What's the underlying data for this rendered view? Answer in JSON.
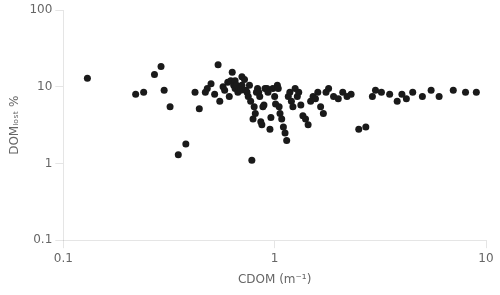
{
  "chart_data": {
    "type": "scatter",
    "x_label": "CDOM (m⁻¹)",
    "y_label": "DOMₗₒₛₜ %",
    "x": [
      0.13,
      0.22,
      0.24,
      0.27,
      0.29,
      0.3,
      0.32,
      0.35,
      0.38,
      0.42,
      0.44,
      0.47,
      0.48,
      0.5,
      0.52,
      0.54,
      0.55,
      0.57,
      0.58,
      0.6,
      0.61,
      0.62,
      0.63,
      0.64,
      0.65,
      0.65,
      0.66,
      0.67,
      0.68,
      0.69,
      0.7,
      0.7,
      0.72,
      0.73,
      0.74,
      0.75,
      0.76,
      0.77,
      0.78,
      0.79,
      0.8,
      0.81,
      0.82,
      0.83,
      0.84,
      0.85,
      0.86,
      0.87,
      0.88,
      0.89,
      0.9,
      0.92,
      0.93,
      0.95,
      0.96,
      0.98,
      1.0,
      1.01,
      1.03,
      1.04,
      1.05,
      1.06,
      1.08,
      1.1,
      1.12,
      1.14,
      1.16,
      1.18,
      1.2,
      1.22,
      1.25,
      1.28,
      1.3,
      1.33,
      1.36,
      1.4,
      1.44,
      1.48,
      1.52,
      1.56,
      1.6,
      1.65,
      1.7,
      1.75,
      1.8,
      1.9,
      2.0,
      2.1,
      2.2,
      2.3,
      2.5,
      2.7,
      2.9,
      3.0,
      3.2,
      3.5,
      3.8,
      4.0,
      4.2,
      4.5,
      5.0,
      5.5,
      6.0,
      7.0,
      8.0,
      9.0
    ],
    "values": [
      13.0,
      8.0,
      8.5,
      14.5,
      18.5,
      9.0,
      5.5,
      1.3,
      1.8,
      8.5,
      5.2,
      8.5,
      9.5,
      11.0,
      8.0,
      19.5,
      6.5,
      10.0,
      9.0,
      11.5,
      7.5,
      12.0,
      15.5,
      10.5,
      9.5,
      12.0,
      10.5,
      8.5,
      9.5,
      9.0,
      10.5,
      13.5,
      12.5,
      9.0,
      8.5,
      7.5,
      10.5,
      6.5,
      1.1,
      3.8,
      5.5,
      4.5,
      8.5,
      9.5,
      8.5,
      7.5,
      3.5,
      3.2,
      5.5,
      5.8,
      9.5,
      9.5,
      8.5,
      2.8,
      4.0,
      9.5,
      7.5,
      6.0,
      10.5,
      9.5,
      5.5,
      4.5,
      3.8,
      3.0,
      2.5,
      2.0,
      7.5,
      8.5,
      6.5,
      5.5,
      9.5,
      7.5,
      8.5,
      5.8,
      4.2,
      3.8,
      3.2,
      6.5,
      7.5,
      7.0,
      8.5,
      5.5,
      4.5,
      8.5,
      9.5,
      7.5,
      7.0,
      8.5,
      7.5,
      8.0,
      2.8,
      3.0,
      7.5,
      9.0,
      8.5,
      8.0,
      6.5,
      8.0,
      7.0,
      8.5,
      7.5,
      9.0,
      7.5,
      9.0,
      8.5,
      8.5
    ],
    "color": "#1a1a1a",
    "marker": "circle",
    "log": true,
    "xlim": [
      0.1,
      10
    ],
    "ylim": [
      0.1,
      100
    ],
    "xticks": [
      0.1,
      1,
      10
    ],
    "yticks": [
      0.1,
      1,
      10,
      100
    ],
    "grid": false
  }
}
